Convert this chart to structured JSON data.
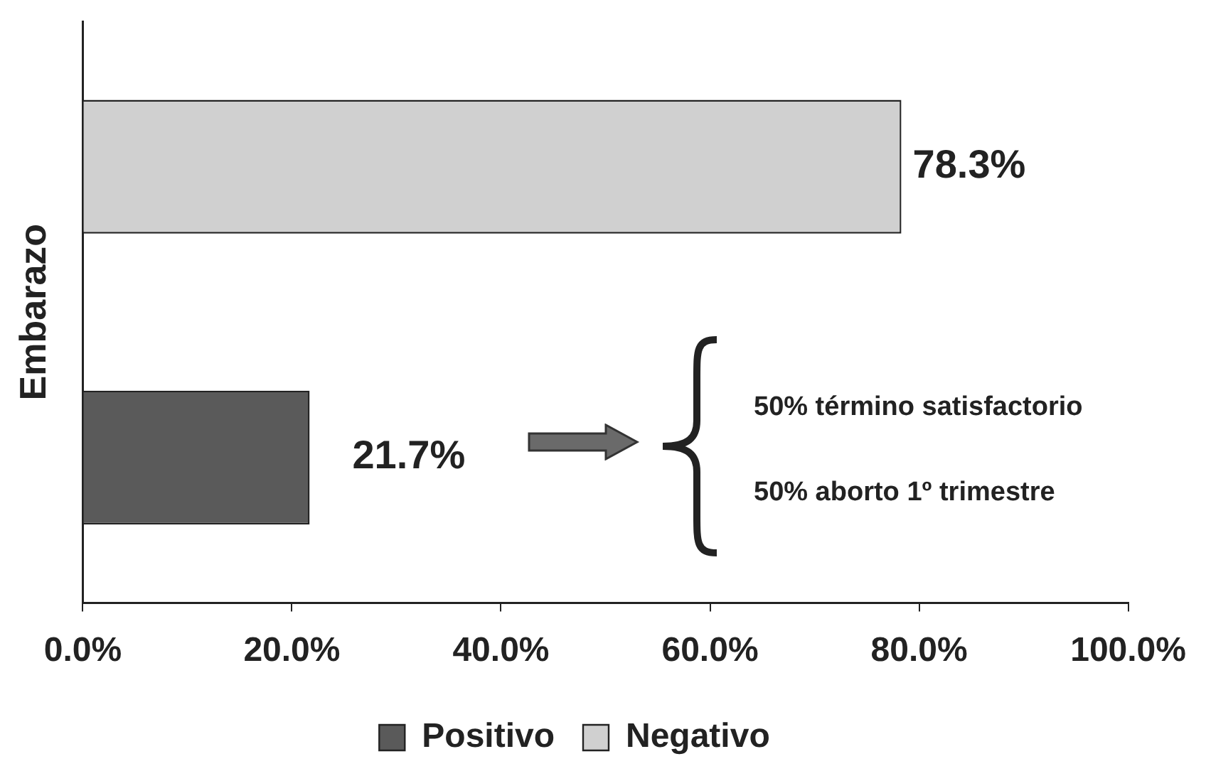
{
  "chart_data": {
    "type": "bar",
    "orientation": "horizontal",
    "ylabel": "Embarazo",
    "categories": [
      null,
      null
    ],
    "series": [
      {
        "name": "Positivo",
        "color": "#5a5a5a",
        "values": [
          null,
          21.7
        ],
        "value_labels": [
          null,
          "21.7%"
        ]
      },
      {
        "name": "Negativo",
        "color": "#d0d0d0",
        "values": [
          78.3,
          null
        ],
        "value_labels": [
          "78.3%",
          null
        ]
      }
    ],
    "xlim": [
      0,
      100
    ],
    "xticks": [
      {
        "value": 0,
        "label": "0.0%"
      },
      {
        "value": 20,
        "label": "20.0%"
      },
      {
        "value": 40,
        "label": "40.0%"
      },
      {
        "value": 60,
        "label": "60.0%"
      },
      {
        "value": 80,
        "label": "80.0%"
      },
      {
        "value": 100,
        "label": "100.0%"
      }
    ],
    "annotations": [
      "50% término satisfactorio",
      "50% aborto 1º trimestre"
    ],
    "grid": false,
    "legend": "bottom"
  }
}
